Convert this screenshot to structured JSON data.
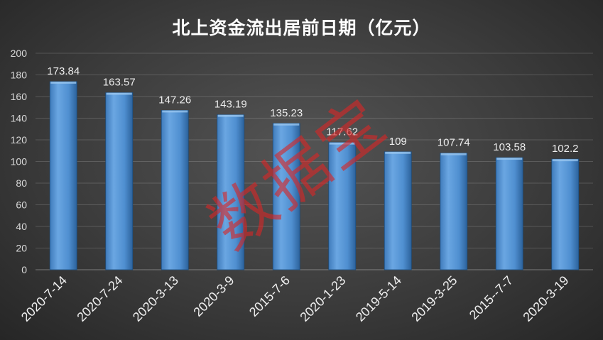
{
  "watermark": "数据宝",
  "colors": {
    "background": "#3c3c3c",
    "bar": "#4f8fd0",
    "text": "#ffffff",
    "watermark": "#d62626"
  },
  "chart_data": {
    "type": "bar",
    "title": "北上资金流出居前日期（亿元）",
    "categories": [
      "2020-7-14",
      "2020-7-24",
      "2020-3-13",
      "2020-3-9",
      "2015-7-6",
      "2020-1-23",
      "2019-5-14",
      "2019-3-25",
      "2015--7-7",
      "2020-3-19"
    ],
    "values": [
      173.84,
      163.57,
      147.26,
      143.19,
      135.23,
      117.62,
      109,
      107.74,
      103.58,
      102.2
    ],
    "ylim": [
      0,
      200
    ],
    "yticks": [
      0,
      20,
      40,
      60,
      80,
      100,
      120,
      140,
      160,
      180,
      200
    ],
    "grid": true,
    "legend": "none",
    "data_labels": true
  }
}
